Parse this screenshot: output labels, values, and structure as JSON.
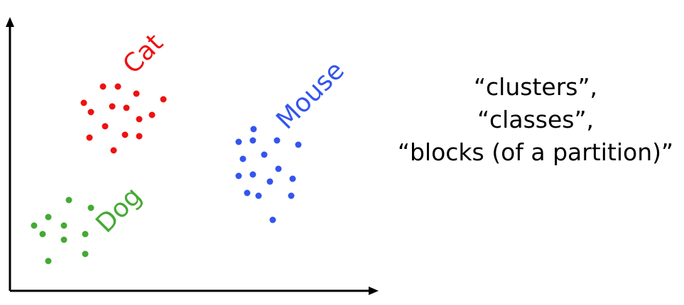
{
  "colors": {
    "axis": "#000000",
    "cat": "#ee1111",
    "dog": "#44aa33",
    "mouse": "#3355ee",
    "text": "#000000"
  },
  "clusters": [
    {
      "key": "cat",
      "label": "Cat",
      "points": [
        [
          145,
          122
        ],
        [
          166,
          122
        ],
        [
          118,
          145
        ],
        [
          192,
          132
        ],
        [
          230,
          140
        ],
        [
          128,
          158
        ],
        [
          158,
          150
        ],
        [
          178,
          152
        ],
        [
          196,
          168
        ],
        [
          214,
          162
        ],
        [
          148,
          178
        ],
        [
          176,
          190
        ],
        [
          196,
          192
        ],
        [
          126,
          194
        ],
        [
          160,
          212
        ]
      ]
    },
    {
      "key": "dog",
      "label": "Dog",
      "points": [
        [
          97,
          282
        ],
        [
          68,
          306
        ],
        [
          128,
          293
        ],
        [
          48,
          318
        ],
        [
          90,
          318
        ],
        [
          60,
          330
        ],
        [
          120,
          330
        ],
        [
          90,
          338
        ],
        [
          120,
          358
        ],
        [
          68,
          368
        ]
      ]
    },
    {
      "key": "mouse",
      "label": "Mouse",
      "points": [
        [
          357,
          182
        ],
        [
          336,
          200
        ],
        [
          356,
          198
        ],
        [
          390,
          198
        ],
        [
          420,
          204
        ],
        [
          372,
          218
        ],
        [
          342,
          224
        ],
        [
          356,
          246
        ],
        [
          392,
          238
        ],
        [
          336,
          248
        ],
        [
          412,
          252
        ],
        [
          380,
          256
        ],
        [
          348,
          272
        ],
        [
          364,
          276
        ],
        [
          410,
          276
        ],
        [
          384,
          310
        ]
      ]
    }
  ],
  "right_text": {
    "line1": "“clusters”,",
    "line2": "“classes”,",
    "line3": "“blocks (of a partition)”"
  }
}
